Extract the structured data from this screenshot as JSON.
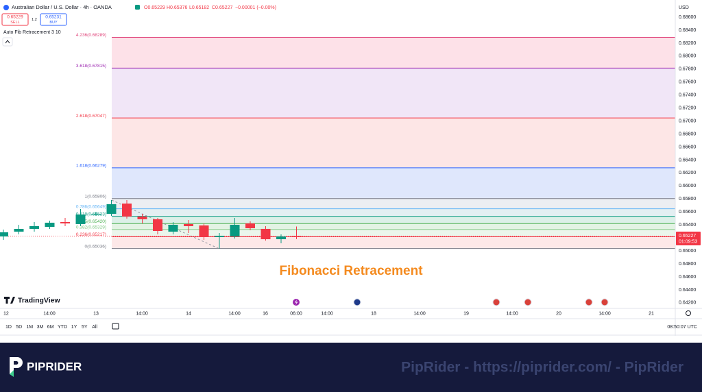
{
  "header": {
    "symbol": "Australian Dollar / U.S. Dollar · 4h · OANDA",
    "ohlc": [
      "O0.65229",
      "H0.65376",
      "L0.65182",
      "C0.65227",
      "−0.00001 (−0.00%)"
    ],
    "sell_price": "0.65229",
    "sell": "SELL",
    "spread": "1.2",
    "buy_price": "0.65231",
    "buy": "BUY",
    "indicator": "Auto Fib Retracement 3 10",
    "currency": "USD"
  },
  "chart": {
    "ylim": [
      0.63956,
      0.68864
    ],
    "yticks": [
      {
        "value": 0.686,
        "label": "0.68600"
      },
      {
        "value": 0.684,
        "label": "0.68400"
      },
      {
        "value": 0.682,
        "label": "0.68200"
      },
      {
        "value": 0.68,
        "label": "0.68000"
      },
      {
        "value": 0.678,
        "label": "0.67800"
      },
      {
        "value": 0.676,
        "label": "0.67600"
      },
      {
        "value": 0.674,
        "label": "0.67400"
      },
      {
        "value": 0.672,
        "label": "0.67200"
      },
      {
        "value": 0.67,
        "label": "0.67000"
      },
      {
        "value": 0.668,
        "label": "0.66800"
      },
      {
        "value": 0.666,
        "label": "0.66600"
      },
      {
        "value": 0.664,
        "label": "0.66400"
      },
      {
        "value": 0.662,
        "label": "0.66200"
      },
      {
        "value": 0.66,
        "label": "0.66000"
      },
      {
        "value": 0.658,
        "label": "0.65800"
      },
      {
        "value": 0.656,
        "label": "0.65600"
      },
      {
        "value": 0.654,
        "label": "0.65400"
      },
      {
        "value": 0.652,
        "label": "0.65200"
      },
      {
        "value": 0.65,
        "label": "0.65000"
      },
      {
        "value": 0.648,
        "label": "0.64800"
      },
      {
        "value": 0.646,
        "label": "0.64600"
      },
      {
        "value": 0.644,
        "label": "0.64400"
      },
      {
        "value": 0.642,
        "label": "0.64200"
      }
    ],
    "candles": [
      {
        "open": 0.65222,
        "high": 0.65328,
        "low": 0.6517,
        "close": 0.65286
      },
      {
        "open": 0.65296,
        "high": 0.65402,
        "low": 0.65254,
        "close": 0.65339
      },
      {
        "open": 0.65339,
        "high": 0.65444,
        "low": 0.65296,
        "close": 0.65381
      },
      {
        "open": 0.6537,
        "high": 0.65466,
        "low": 0.65339,
        "close": 0.65434
      },
      {
        "open": 0.65444,
        "high": 0.65508,
        "low": 0.65381,
        "close": 0.65423
      },
      {
        "open": 0.65413,
        "high": 0.65645,
        "low": 0.65381,
        "close": 0.6556
      },
      {
        "open": 0.6556,
        "high": 0.656,
        "low": 0.6554,
        "close": 0.65571
      },
      {
        "open": 0.65571,
        "high": 0.65782,
        "low": 0.65539,
        "close": 0.65719
      },
      {
        "open": 0.65729,
        "high": 0.65782,
        "low": 0.65497,
        "close": 0.65529
      },
      {
        "open": 0.65529,
        "high": 0.65571,
        "low": 0.65423,
        "close": 0.65487
      },
      {
        "open": 0.65487,
        "high": 0.65508,
        "low": 0.65254,
        "close": 0.65307
      },
      {
        "open": 0.65296,
        "high": 0.65444,
        "low": 0.65254,
        "close": 0.65402
      },
      {
        "open": 0.65413,
        "high": 0.65476,
        "low": 0.65275,
        "close": 0.65381
      },
      {
        "open": 0.65392,
        "high": 0.65423,
        "low": 0.6517,
        "close": 0.65212
      },
      {
        "open": 0.65212,
        "high": 0.65275,
        "low": 0.65036,
        "close": 0.65233
      },
      {
        "open": 0.65222,
        "high": 0.65508,
        "low": 0.65191,
        "close": 0.65402
      },
      {
        "open": 0.65423,
        "high": 0.65455,
        "low": 0.65318,
        "close": 0.65349
      },
      {
        "open": 0.65339,
        "high": 0.65381,
        "low": 0.65159,
        "close": 0.6518
      },
      {
        "open": 0.6518,
        "high": 0.65254,
        "low": 0.65117,
        "close": 0.65222
      },
      {
        "open": 0.65229,
        "high": 0.65376,
        "low": 0.65182,
        "close": 0.65227
      }
    ],
    "up_color": "#089981",
    "down_color": "#f23645",
    "fib_levels": [
      {
        "label": "4.236(0.68289)",
        "value": 0.68289,
        "color": "#e0457b",
        "fill": "#fde1e8"
      },
      {
        "label": "3.618(0.67815)",
        "value": 0.67815,
        "color": "#9c27b0",
        "fill": "#f1e6f7"
      },
      {
        "label": "2.618(0.67047)",
        "value": 0.67047,
        "color": "#f23645",
        "fill": "#fde6e6"
      },
      {
        "label": "1.618(0.66279)",
        "value": 0.66279,
        "color": "#2962ff",
        "fill": "#dfe7fc"
      },
      {
        "label": "1(0.65806)",
        "value": 0.65806,
        "color": "#787b86",
        "fill": "#eceef2"
      },
      {
        "label": "0.786(0.65649)",
        "value": 0.65649,
        "color": "#64b5f6",
        "fill": "#e3eff2"
      },
      {
        "label": "0.618(0.65533)",
        "value": 0.65533,
        "color": "#089981",
        "fill": "#dcf0e8"
      },
      {
        "label": "0.5(0.65420)",
        "value": 0.6542,
        "color": "#4caf50",
        "fill": "#e3f3e4"
      },
      {
        "label": "0.382(0.65329)",
        "value": 0.65329,
        "color": "#81c784",
        "fill": "#ebf6ec"
      },
      {
        "label": "0.236(0.65217)",
        "value": 0.65217,
        "color": "#f23645",
        "fill": "#fde8e8"
      },
      {
        "label": "0(0.65036)",
        "value": 0.65036,
        "color": "#787b86",
        "fill": "none"
      }
    ],
    "price_label": "0.65227",
    "price_timer": "01:09:53",
    "time_labels": [
      "12",
      "14:00",
      "13",
      "14:00",
      "14",
      "14:00",
      "16",
      "06:00",
      "14:00",
      "18",
      "14:00",
      "19",
      "14:00",
      "20",
      "14:00",
      "21"
    ],
    "logo": "TradingView",
    "overlay": "Fibonacci Retracement"
  },
  "toolbar": {
    "ranges": [
      "1D",
      "5D",
      "1M",
      "3M",
      "6M",
      "YTD",
      "1Y",
      "5Y",
      "All"
    ],
    "clock": "08:50:07 UTC"
  },
  "footer": {
    "brand": "PIPRIDER",
    "text": "PipRider - https://piprider.com/ - PipRider"
  }
}
